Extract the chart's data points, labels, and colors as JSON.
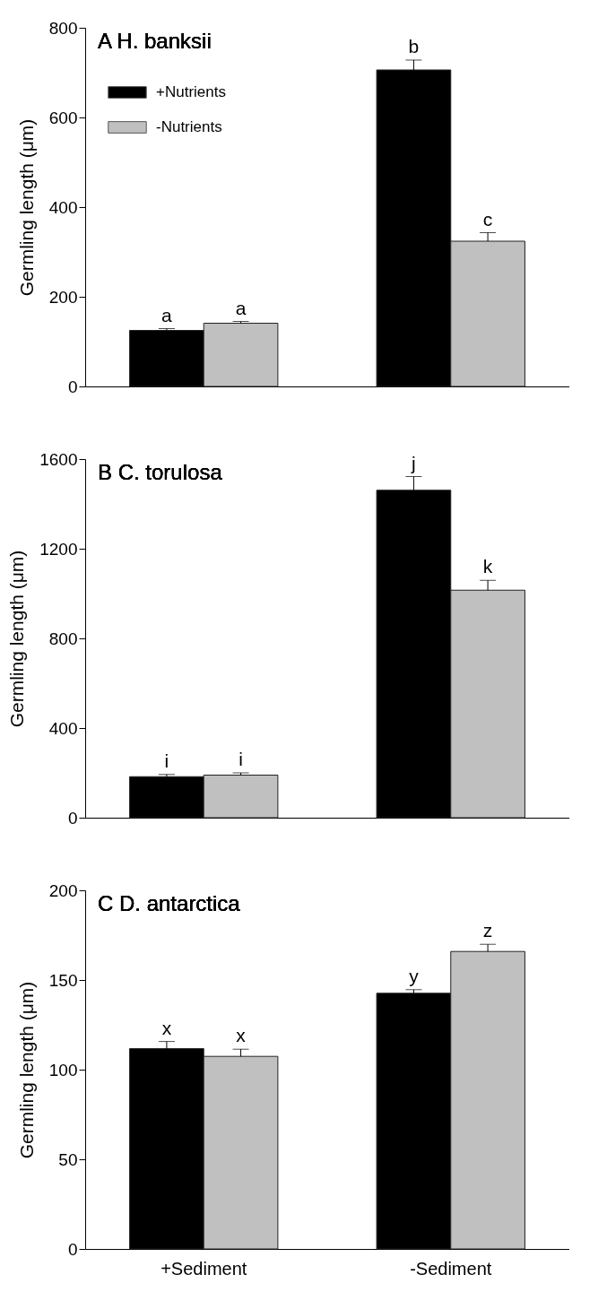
{
  "chart_data": [
    {
      "type": "bar",
      "title": "A H. banksii",
      "ylabel": "Germling length (μm)",
      "categories": [
        null,
        null
      ],
      "ylim": [
        0,
        800
      ],
      "yticks": [
        0,
        200,
        400,
        600,
        800
      ],
      "grid": false,
      "legend": "top left",
      "tick_labels": "y",
      "series": [
        {
          "name": "+Nutrients",
          "color": "#000000",
          "values": [
            125,
            706
          ],
          "errors": [
            4,
            22
          ],
          "value_labels": [
            "a",
            "b"
          ]
        },
        {
          "name": "-Nutrients",
          "color": "#c0c0c0",
          "values": [
            141,
            324
          ],
          "errors": [
            4,
            19
          ],
          "value_labels": [
            "a",
            "c"
          ]
        }
      ]
    },
    {
      "type": "bar",
      "title": "B C. torulosa",
      "ylabel": "Germling length (μm)",
      "categories": [
        null,
        null
      ],
      "ylim": [
        0,
        1600
      ],
      "yticks": [
        0,
        400,
        800,
        1200,
        1600
      ],
      "grid": false,
      "legend": false,
      "tick_labels": "y",
      "series": [
        {
          "name": "+Nutrients",
          "color": "#000000",
          "values": [
            183,
            1461
          ],
          "errors": [
            10,
            61
          ],
          "value_labels": [
            "i",
            "j"
          ]
        },
        {
          "name": "-Nutrients",
          "color": "#c0c0c0",
          "values": [
            190,
            1015
          ],
          "errors": [
            10,
            44
          ],
          "value_labels": [
            "i",
            "k"
          ]
        }
      ]
    },
    {
      "type": "bar",
      "title": "C D. antarctica",
      "ylabel": "Germling length (μm)",
      "categories": [
        "+Sediment",
        "-Sediment"
      ],
      "ylim": [
        0,
        200
      ],
      "yticks": [
        0,
        50,
        100,
        150,
        200
      ],
      "grid": false,
      "legend": false,
      "series": [
        {
          "name": "+Nutrients",
          "color": "#000000",
          "values": [
            111.7,
            142.6
          ],
          "errors": [
            4,
            2
          ],
          "value_labels": [
            "x",
            "y"
          ]
        },
        {
          "name": "-Nutrients",
          "color": "#c0c0c0",
          "values": [
            107.4,
            165.9
          ],
          "errors": [
            4,
            4
          ],
          "value_labels": [
            "x",
            "z"
          ]
        }
      ]
    }
  ]
}
